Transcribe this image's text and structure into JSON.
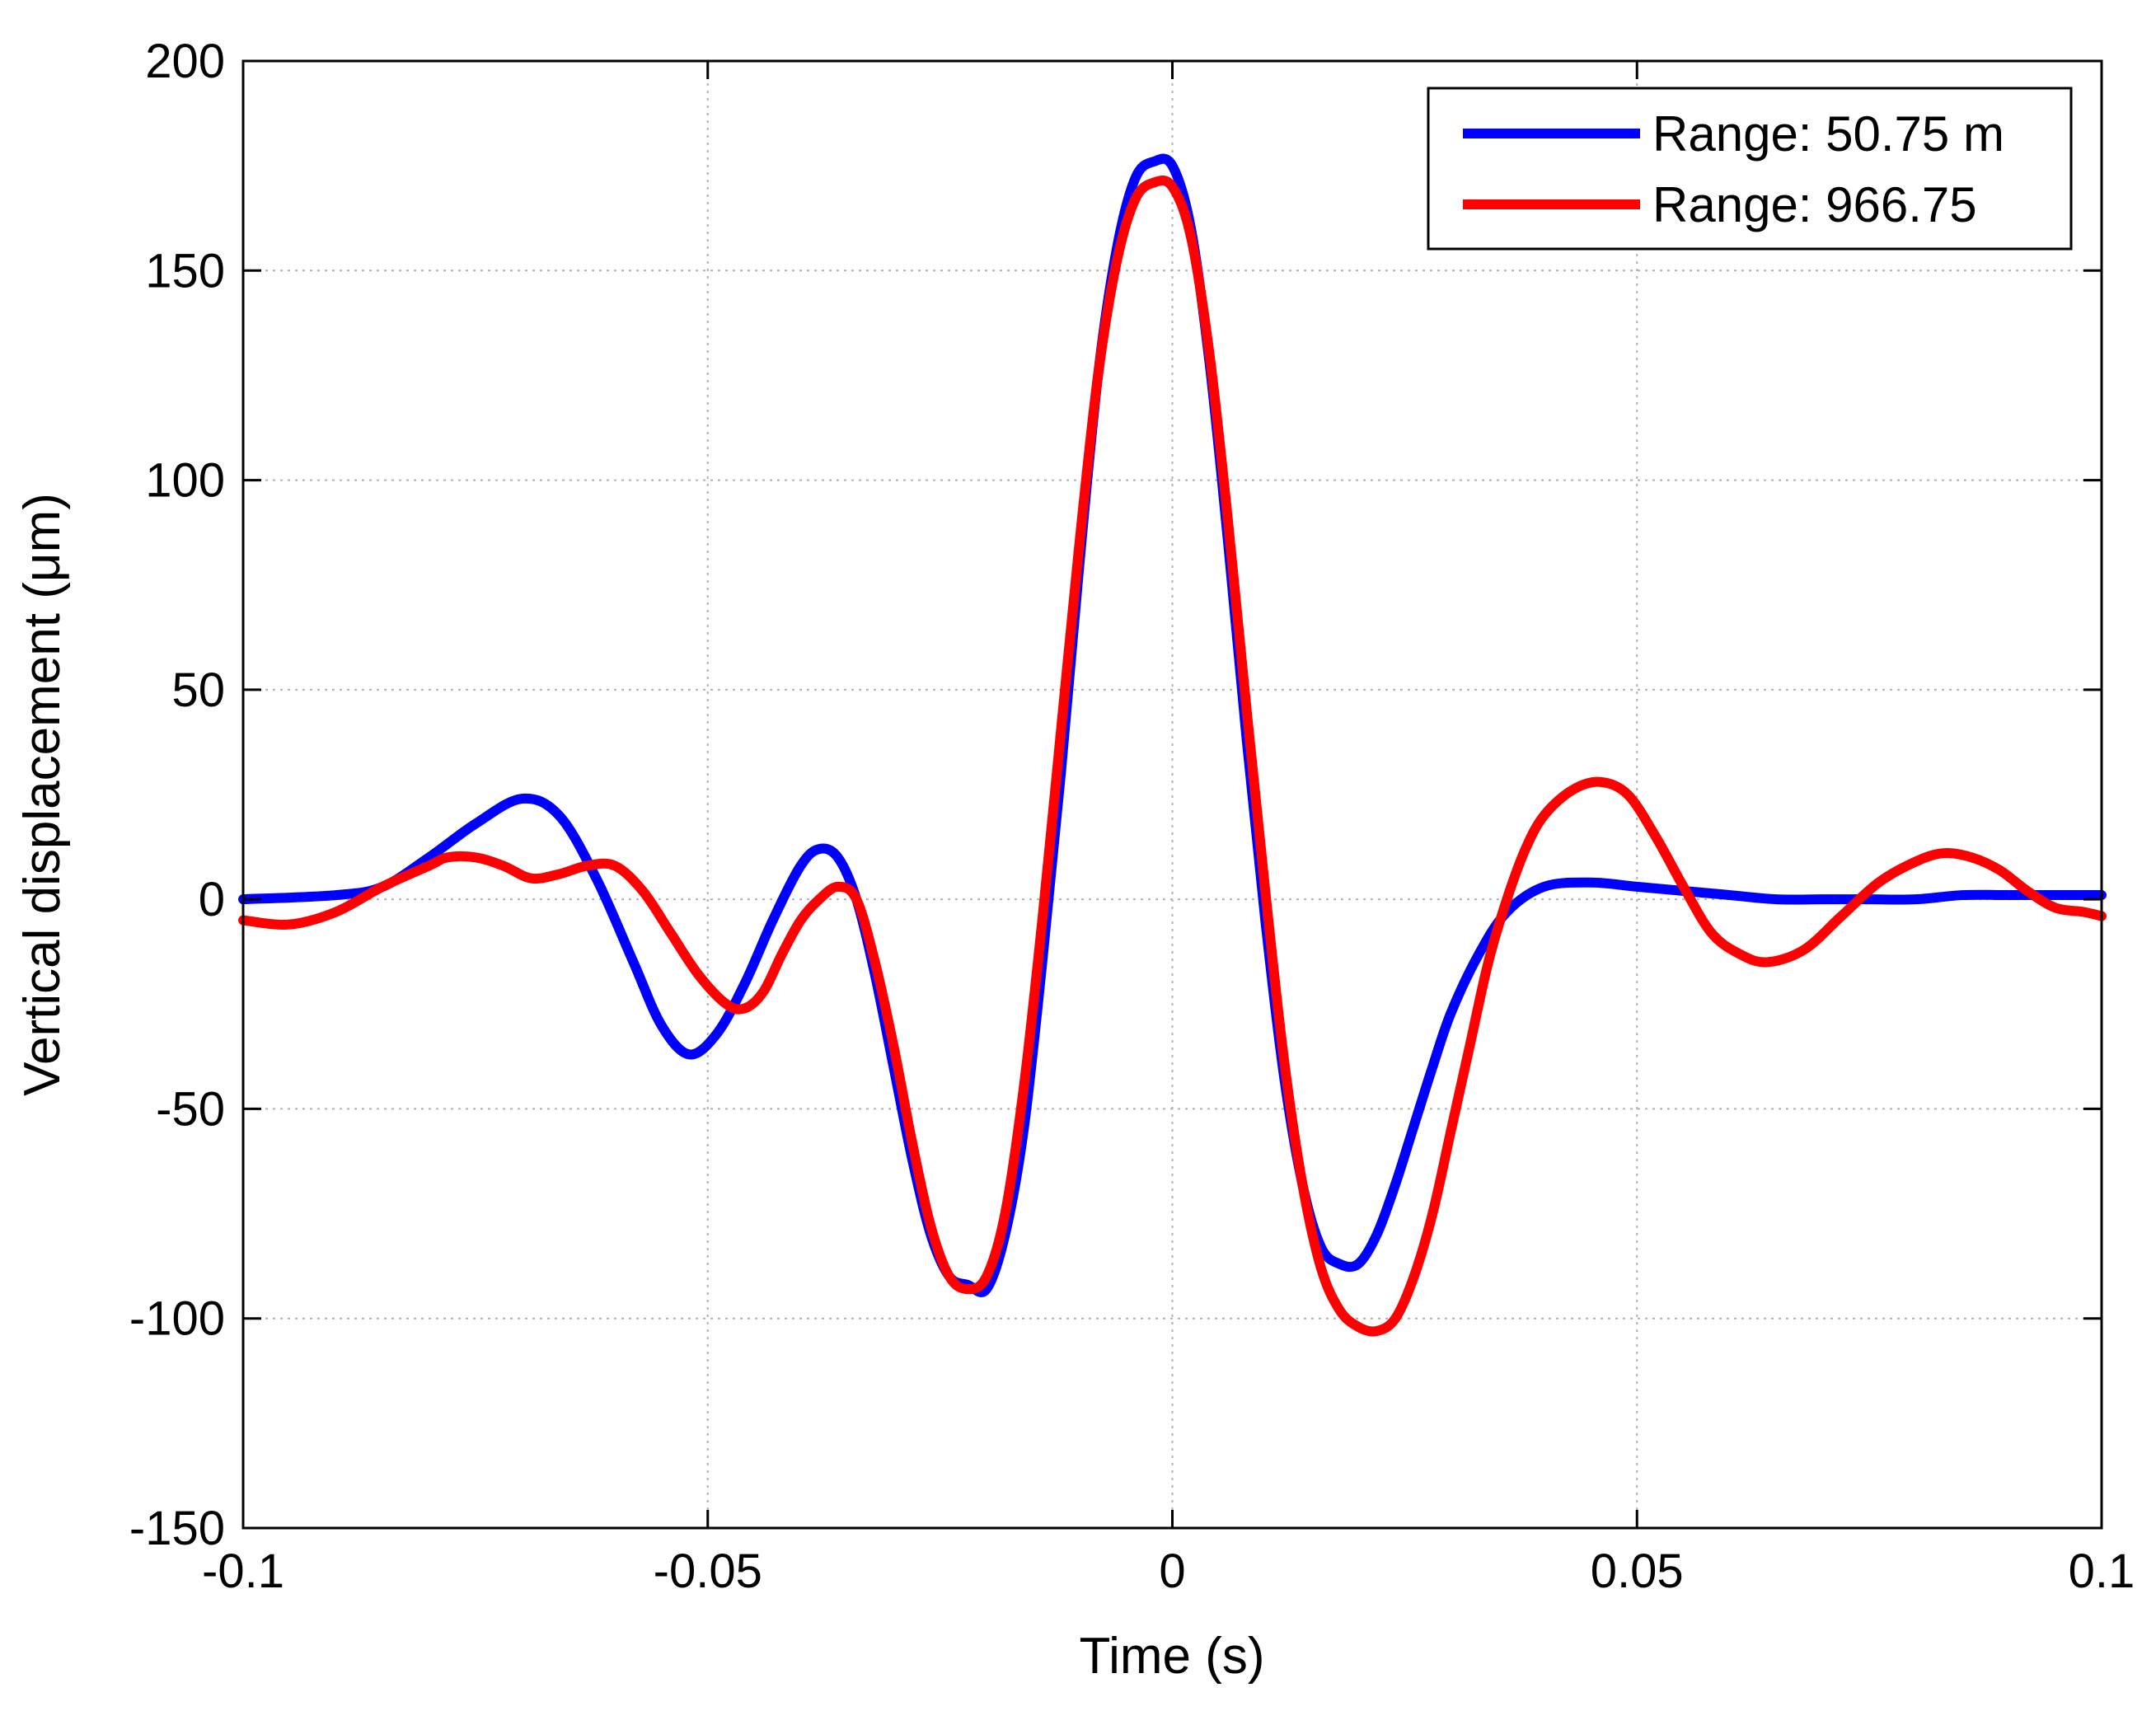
{
  "chart_data": {
    "type": "line",
    "title": "",
    "xlabel": "Time (s)",
    "ylabel": "Vertical displacement (μm)",
    "xlim": [
      -0.1,
      0.1
    ],
    "ylim": [
      -150,
      200
    ],
    "xticks": [
      -0.1,
      -0.05,
      0,
      0.05,
      0.1
    ],
    "xtick_labels": [
      "-0.1",
      "-0.05",
      "0",
      "0.05",
      "0.1"
    ],
    "yticks": [
      -150,
      -100,
      -50,
      0,
      50,
      100,
      150,
      200
    ],
    "ytick_labels": [
      "-150",
      "-100",
      "-50",
      "0",
      "50",
      "100",
      "150",
      "200"
    ],
    "grid": true,
    "legend_position": "top-right",
    "series": [
      {
        "name": "Range: 50.75 m",
        "color": "#0000ff",
        "x": [
          -0.1,
          -0.09,
          -0.085,
          -0.08,
          -0.075,
          -0.07,
          -0.066,
          -0.062,
          -0.058,
          -0.055,
          -0.052,
          -0.049,
          -0.046,
          -0.043,
          -0.04,
          -0.038,
          -0.036,
          -0.034,
          -0.032,
          -0.03,
          -0.028,
          -0.026,
          -0.024,
          -0.022,
          -0.02,
          -0.018,
          -0.016,
          -0.014,
          -0.012,
          -0.01,
          -0.008,
          -0.006,
          -0.004,
          -0.002,
          0,
          0.002,
          0.004,
          0.006,
          0.008,
          0.01,
          0.012,
          0.014,
          0.016,
          0.018,
          0.02,
          0.022,
          0.024,
          0.026,
          0.028,
          0.03,
          0.033,
          0.036,
          0.04,
          0.045,
          0.05,
          0.055,
          0.06,
          0.065,
          0.07,
          0.075,
          0.08,
          0.085,
          0.09,
          0.095,
          0.1
        ],
        "values": [
          0,
          1,
          3,
          10,
          18,
          24,
          20,
          5,
          -15,
          -30,
          -37,
          -32,
          -20,
          -5,
          8,
          12,
          10,
          0,
          -18,
          -40,
          -62,
          -80,
          -90,
          -92,
          -93,
          -80,
          -55,
          -15,
          30,
          80,
          125,
          155,
          172,
          176,
          175,
          160,
          128,
          85,
          38,
          -5,
          -42,
          -68,
          -83,
          -87,
          -87,
          -80,
          -68,
          -54,
          -40,
          -27,
          -13,
          -3,
          3,
          4,
          3,
          2,
          1,
          0,
          0,
          0,
          0,
          1,
          1,
          1,
          1
        ]
      },
      {
        "name": "Range: 966.75",
        "color": "#ff0000",
        "x": [
          -0.1,
          -0.095,
          -0.09,
          -0.085,
          -0.08,
          -0.078,
          -0.075,
          -0.072,
          -0.069,
          -0.066,
          -0.063,
          -0.06,
          -0.057,
          -0.054,
          -0.051,
          -0.048,
          -0.046,
          -0.044,
          -0.042,
          -0.04,
          -0.038,
          -0.036,
          -0.034,
          -0.032,
          -0.03,
          -0.028,
          -0.026,
          -0.024,
          -0.022,
          -0.02,
          -0.018,
          -0.016,
          -0.014,
          -0.012,
          -0.01,
          -0.008,
          -0.006,
          -0.004,
          -0.002,
          0,
          0.002,
          0.004,
          0.006,
          0.008,
          0.01,
          0.012,
          0.014,
          0.016,
          0.018,
          0.02,
          0.022,
          0.024,
          0.026,
          0.028,
          0.03,
          0.032,
          0.034,
          0.036,
          0.038,
          0.04,
          0.043,
          0.046,
          0.049,
          0.052,
          0.055,
          0.058,
          0.061,
          0.064,
          0.068,
          0.072,
          0.076,
          0.08,
          0.083,
          0.086,
          0.089,
          0.092,
          0.095,
          0.098,
          0.1
        ],
        "values": [
          -5,
          -6,
          -3,
          3,
          8,
          10,
          10,
          8,
          5,
          6,
          8,
          8,
          2,
          -8,
          -18,
          -25,
          -26,
          -22,
          -13,
          -5,
          0,
          3,
          0,
          -15,
          -35,
          -58,
          -78,
          -90,
          -93,
          -90,
          -75,
          -45,
          -5,
          40,
          85,
          125,
          152,
          167,
          171,
          170,
          158,
          130,
          90,
          45,
          2,
          -38,
          -68,
          -88,
          -98,
          -102,
          -103,
          -100,
          -90,
          -75,
          -55,
          -35,
          -15,
          0,
          12,
          20,
          26,
          28,
          25,
          15,
          3,
          -8,
          -13,
          -15,
          -12,
          -4,
          4,
          9,
          11,
          10,
          7,
          2,
          -2,
          -3,
          -4
        ]
      }
    ]
  }
}
